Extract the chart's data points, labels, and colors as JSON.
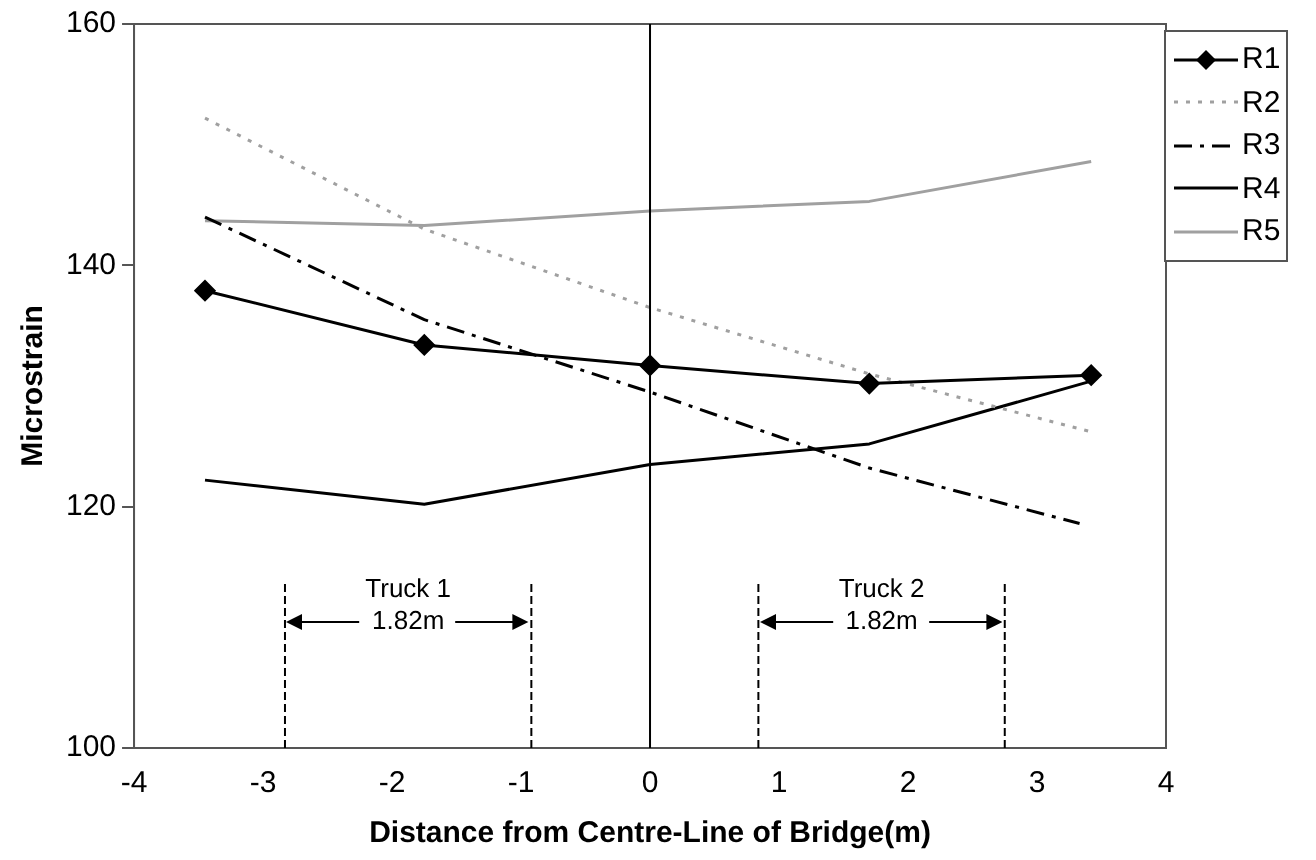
{
  "chart_data": {
    "type": "line",
    "xlabel": "Distance from Centre-Line of Bridge(m)",
    "ylabel": "Microstrain",
    "xlim": [
      -4,
      4
    ],
    "xticks": [
      -4,
      -3,
      -2,
      -1,
      0,
      1,
      2,
      3,
      4
    ],
    "ylim": [
      100,
      160
    ],
    "yticks": [
      100,
      120,
      140,
      160
    ],
    "grid": false,
    "legend": "right",
    "series": [
      {
        "name": "R1",
        "color": "#000000",
        "marker": "diamond",
        "line_style": "solid",
        "x": [
          -3.45,
          -1.75,
          0,
          1.7,
          3.42
        ],
        "values": [
          137.9,
          133.4,
          131.7,
          130.2,
          130.9
        ]
      },
      {
        "name": "R2",
        "color": "#a0a0a0",
        "marker": "none",
        "line_style": "dotted",
        "x": [
          -3.45,
          -1.75,
          0,
          1.7,
          3.42
        ],
        "values": [
          152.2,
          143.0,
          136.5,
          131.0,
          126.2
        ]
      },
      {
        "name": "R3",
        "color": "#000000",
        "marker": "none",
        "line_style": "dashed",
        "x": [
          -3.45,
          -1.75,
          0,
          1.7,
          3.33
        ],
        "values": [
          144.0,
          135.5,
          129.5,
          123.2,
          118.6
        ]
      },
      {
        "name": "R4",
        "color": "#000000",
        "marker": "none",
        "line_style": "solid",
        "x": [
          -3.45,
          -1.75,
          0,
          1.7,
          3.42
        ],
        "values": [
          122.2,
          120.2,
          123.5,
          125.2,
          130.4
        ]
      },
      {
        "name": "R5",
        "color": "#a0a0a0",
        "marker": "none",
        "line_style": "solid",
        "x": [
          -3.45,
          -1.75,
          0,
          1.7,
          3.42
        ],
        "values": [
          143.7,
          143.3,
          144.5,
          145.3,
          148.6
        ]
      }
    ],
    "ref_lines": [
      {
        "axis": "x",
        "value": 0,
        "color": "#000000",
        "line_style": "solid"
      },
      {
        "axis": "x",
        "value": -2.83,
        "color": "#000000",
        "line_style": "dashed"
      },
      {
        "axis": "x",
        "value": -0.92,
        "color": "#000000",
        "line_style": "dashed"
      },
      {
        "axis": "x",
        "value": 0.84,
        "color": "#000000",
        "line_style": "dashed"
      },
      {
        "axis": "x",
        "value": 2.75,
        "color": "#000000",
        "line_style": "dashed"
      }
    ],
    "annotations": [
      "Truck 1",
      "1.82m",
      "Truck 2",
      "1.82m"
    ]
  }
}
